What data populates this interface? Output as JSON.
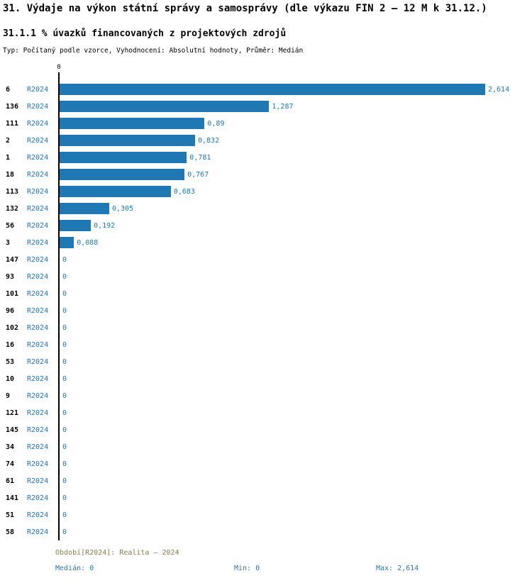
{
  "header": {
    "title": "31. Výdaje na výkon státní správy a samosprávy (dle výkazu FIN 2 – 12 M k 31.12.)",
    "subtitle": "31.1.1 % úvazků financovaných z projektových zdrojů",
    "meta": "Typ: Počítaný podle vzorce, Vyhodnocení: Absolutní hodnoty, Průměr: Medián"
  },
  "chart_data": {
    "type": "bar",
    "orientation": "horizontal",
    "title": "31.1.1 % úvazků financovaných z projektových zdrojů",
    "series_label": "R2024",
    "axis_top_label": "0",
    "xlim": [
      0,
      2.614
    ],
    "grid": false,
    "bar_color": "#1f77b4",
    "categories": [
      "6",
      "136",
      "111",
      "2",
      "1",
      "18",
      "113",
      "132",
      "56",
      "3",
      "147",
      "93",
      "101",
      "96",
      "102",
      "16",
      "53",
      "10",
      "9",
      "121",
      "145",
      "34",
      "74",
      "61",
      "141",
      "51",
      "58"
    ],
    "values": [
      2.614,
      1.287,
      0.89,
      0.832,
      0.781,
      0.767,
      0.683,
      0.305,
      0.192,
      0.088,
      0,
      0,
      0,
      0,
      0,
      0,
      0,
      0,
      0,
      0,
      0,
      0,
      0,
      0,
      0,
      0,
      0
    ],
    "value_labels": [
      "2,614",
      "1,287",
      "0,89",
      "0,832",
      "0,781",
      "0,767",
      "0,683",
      "0,305",
      "0,192",
      "0,088",
      "0",
      "0",
      "0",
      "0",
      "0",
      "0",
      "0",
      "0",
      "0",
      "0",
      "0",
      "0",
      "0",
      "0",
      "0",
      "0",
      "0"
    ]
  },
  "footer": {
    "period": "Období[R2024]: Realita – 2024",
    "median": "Medián: 0",
    "min": "Min: 0",
    "max": "Max: 2,614",
    "period_color": "#8b7d4a",
    "stats_color": "#1f77b4"
  }
}
